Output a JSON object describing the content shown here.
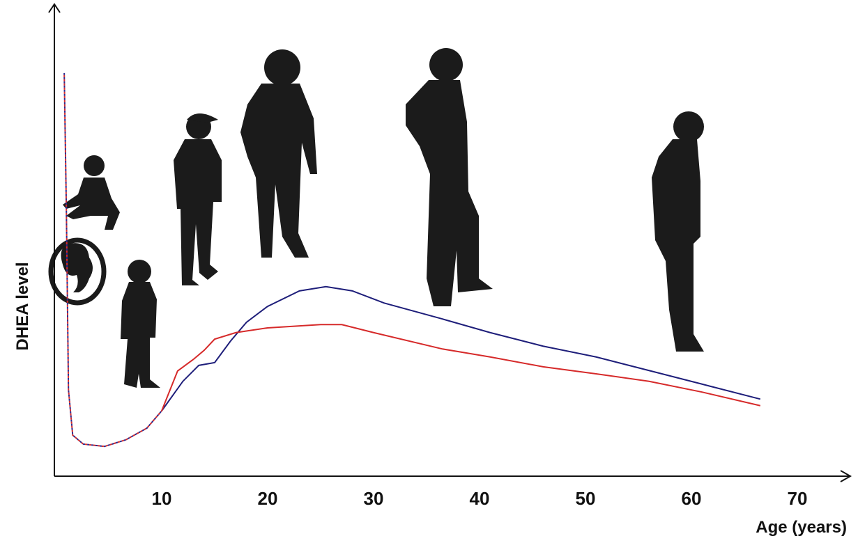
{
  "chart_data": {
    "type": "line",
    "x_label": "Age (years)",
    "y_label": "DHEA level",
    "xlim": [
      0,
      75
    ],
    "ylim": [
      0,
      100
    ],
    "xticks": [
      10,
      20,
      30,
      40,
      50,
      60,
      70
    ],
    "grid": false,
    "series": [
      {
        "color": "#2b2b8f",
        "dash_color": "#d62a2a",
        "dashed": true,
        "x": [
          0.8,
          1.0,
          1.2,
          1.6,
          2.6,
          4.6,
          6.6,
          8.6,
          10
        ],
        "values": [
          85.9,
          56.9,
          18.3,
          8.6,
          6.7,
          6.2,
          7.6,
          10.1,
          13.8
        ]
      },
      {
        "color": "#1e1e7a",
        "dashed": false,
        "x": [
          10,
          12,
          13.5,
          15,
          16.5,
          18,
          20,
          23,
          25.5,
          28,
          31,
          36.5,
          41,
          46,
          51,
          56,
          61,
          66.5
        ],
        "values": [
          13.8,
          20.1,
          23.5,
          24.1,
          28.7,
          32.7,
          36.1,
          39.4,
          40.3,
          39.4,
          36.8,
          33.4,
          30.5,
          27.6,
          25.3,
          22.4,
          19.5,
          16.3
        ]
      },
      {
        "color": "#d62a2a",
        "dashed": false,
        "x": [
          10,
          11.5,
          13,
          14,
          15,
          17,
          20,
          25,
          27,
          30,
          36.5,
          41,
          46,
          51,
          56,
          61,
          66.5
        ],
        "values": [
          13.8,
          22.3,
          24.8,
          26.7,
          29.1,
          30.5,
          31.5,
          32.2,
          32.2,
          30.5,
          27.0,
          25.3,
          23.2,
          21.7,
          20.1,
          17.8,
          14.9
        ]
      }
    ]
  }
}
